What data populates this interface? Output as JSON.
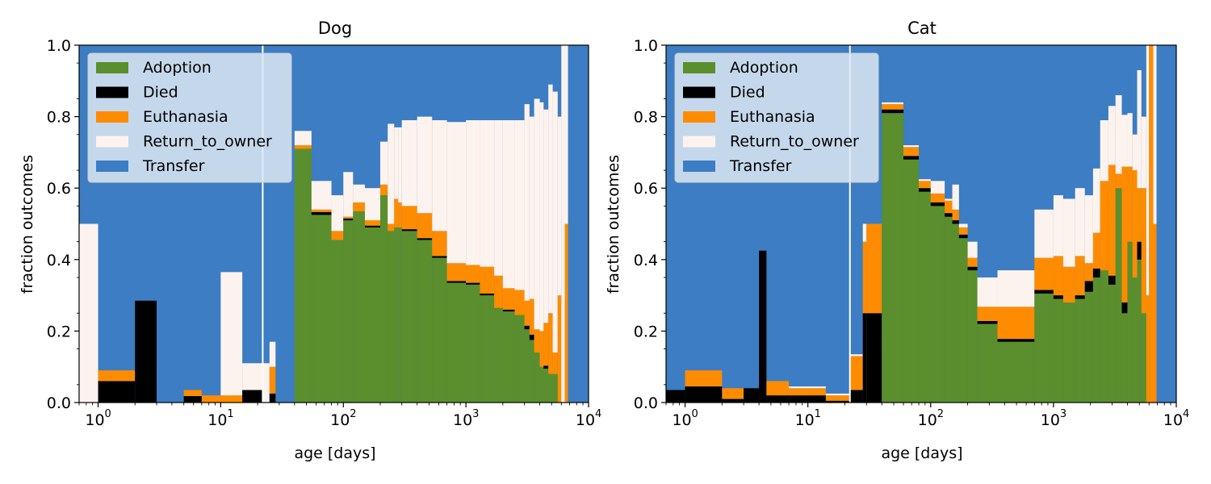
{
  "colors": {
    "Adoption": "#5b8e2c",
    "Died": "#000000",
    "Euthanasia": "#ff8c00",
    "Return_to_owner": "#fdf3ee",
    "Transfer": "#3c7dc3",
    "legend_bg": "#dde8f2",
    "marker_line": "#ffffff"
  },
  "chart_data": [
    {
      "type": "area",
      "title": "Dog",
      "xlabel": "age [days]",
      "ylabel": "fraction outcomes",
      "xscale": "log",
      "xlim": [
        0.7,
        10000
      ],
      "ylim": [
        0.0,
        1.0
      ],
      "x_ticks": [
        {
          "base": "10",
          "exp": "0"
        },
        {
          "base": "10",
          "exp": "1"
        },
        {
          "base": "10",
          "exp": "2"
        },
        {
          "base": "10",
          "exp": "3"
        },
        {
          "base": "10",
          "exp": "4"
        }
      ],
      "y_ticks": [
        "0.0",
        "0.2",
        "0.4",
        "0.6",
        "0.8",
        "1.0"
      ],
      "legend": {
        "position": "upper left",
        "entries": [
          "Adoption",
          "Died",
          "Euthanasia",
          "Return_to_owner",
          "Transfer"
        ]
      },
      "marker_x": 22,
      "series": [
        "Adoption",
        "Died",
        "Euthanasia",
        "Return_to_owner",
        "Transfer"
      ],
      "bins": [
        {
          "x0": 0.7,
          "x1": 1,
          "v": [
            0,
            0,
            0,
            0.5
          ]
        },
        {
          "x0": 1,
          "x1": 2,
          "v": [
            0,
            0.06,
            0.03,
            0
          ]
        },
        {
          "x0": 2,
          "x1": 3,
          "v": [
            0,
            0.285,
            0,
            0
          ]
        },
        {
          "x0": 3,
          "x1": 5,
          "v": [
            0,
            0,
            0,
            0
          ]
        },
        {
          "x0": 5,
          "x1": 7,
          "v": [
            0,
            0.018,
            0.017,
            0
          ]
        },
        {
          "x0": 7,
          "x1": 10,
          "v": [
            0,
            0,
            0.02,
            0
          ]
        },
        {
          "x0": 10,
          "x1": 15,
          "v": [
            0,
            0,
            0.02,
            0.345
          ]
        },
        {
          "x0": 15,
          "x1": 22,
          "v": [
            0,
            0.035,
            0,
            0.075
          ]
        },
        {
          "x0": 22,
          "x1": 25,
          "v": [
            0,
            0,
            0,
            0.11
          ]
        },
        {
          "x0": 25,
          "x1": 28,
          "v": [
            0,
            0.025,
            0.075,
            0.07
          ]
        },
        {
          "x0": 28,
          "x1": 40,
          "v": [
            0,
            0,
            0,
            0
          ]
        },
        {
          "x0": 40,
          "x1": 55,
          "v": [
            0.71,
            0,
            0.01,
            0.04
          ]
        },
        {
          "x0": 55,
          "x1": 80,
          "v": [
            0.525,
            0.008,
            0.007,
            0.08
          ]
        },
        {
          "x0": 80,
          "x1": 100,
          "v": [
            0.455,
            0,
            0.025,
            0.1
          ]
        },
        {
          "x0": 100,
          "x1": 120,
          "v": [
            0.51,
            0.005,
            0.005,
            0.125
          ]
        },
        {
          "x0": 120,
          "x1": 150,
          "v": [
            0.535,
            0,
            0.025,
            0.05
          ]
        },
        {
          "x0": 150,
          "x1": 200,
          "v": [
            0.49,
            0.005,
            0.015,
            0.09
          ]
        },
        {
          "x0": 200,
          "x1": 230,
          "v": [
            0.58,
            0,
            0.03,
            0.12
          ]
        },
        {
          "x0": 230,
          "x1": 260,
          "v": [
            0.48,
            0,
            0.02,
            0.28
          ]
        },
        {
          "x0": 260,
          "x1": 280,
          "v": [
            0.49,
            0,
            0.08,
            0.2
          ]
        },
        {
          "x0": 280,
          "x1": 300,
          "v": [
            0.49,
            0,
            0.07,
            0.21
          ]
        },
        {
          "x0": 300,
          "x1": 400,
          "v": [
            0.48,
            0.005,
            0.065,
            0.24
          ]
        },
        {
          "x0": 400,
          "x1": 530,
          "v": [
            0.455,
            0.005,
            0.07,
            0.27
          ]
        },
        {
          "x0": 530,
          "x1": 700,
          "v": [
            0.405,
            0.005,
            0.07,
            0.31
          ]
        },
        {
          "x0": 700,
          "x1": 1000,
          "v": [
            0.335,
            0.005,
            0.05,
            0.395
          ]
        },
        {
          "x0": 1000,
          "x1": 1300,
          "v": [
            0.33,
            0.005,
            0.05,
            0.405
          ]
        },
        {
          "x0": 1300,
          "x1": 1700,
          "v": [
            0.3,
            0.005,
            0.075,
            0.41
          ]
        },
        {
          "x0": 1700,
          "x1": 2000,
          "v": [
            0.265,
            0,
            0.09,
            0.435
          ]
        },
        {
          "x0": 2000,
          "x1": 2500,
          "v": [
            0.255,
            0.005,
            0.06,
            0.47
          ]
        },
        {
          "x0": 2500,
          "x1": 3000,
          "v": [
            0.245,
            0,
            0.07,
            0.475
          ]
        },
        {
          "x0": 3000,
          "x1": 3300,
          "v": [
            0.205,
            0.01,
            0.07,
            0.55
          ]
        },
        {
          "x0": 3300,
          "x1": 3600,
          "v": [
            0.175,
            0.015,
            0.1,
            0.51
          ]
        },
        {
          "x0": 3600,
          "x1": 4000,
          "v": [
            0.14,
            0,
            0.065,
            0.645
          ]
        },
        {
          "x0": 4000,
          "x1": 4300,
          "v": [
            0.1,
            0,
            0.1,
            0.64
          ]
        },
        {
          "x0": 4300,
          "x1": 4700,
          "v": [
            0.095,
            0.008,
            0.12,
            0.597
          ]
        },
        {
          "x0": 4700,
          "x1": 5100,
          "v": [
            0.08,
            0,
            0.17,
            0.64
          ]
        },
        {
          "x0": 5100,
          "x1": 5600,
          "v": [
            0.08,
            0,
            0.06,
            0.73
          ]
        },
        {
          "x0": 5600,
          "x1": 6000,
          "v": [
            0,
            0,
            0.3,
            0.5
          ]
        },
        {
          "x0": 6000,
          "x1": 6400,
          "v": [
            0,
            0,
            0,
            1.0
          ]
        },
        {
          "x0": 6400,
          "x1": 6800,
          "v": [
            0,
            0,
            0.5,
            0.5
          ]
        }
      ]
    },
    {
      "type": "area",
      "title": "Cat",
      "xlabel": "age [days]",
      "ylabel": "fraction outcomes",
      "xscale": "log",
      "xlim": [
        0.7,
        10000
      ],
      "ylim": [
        0.0,
        1.0
      ],
      "x_ticks": [
        {
          "base": "10",
          "exp": "0"
        },
        {
          "base": "10",
          "exp": "1"
        },
        {
          "base": "10",
          "exp": "2"
        },
        {
          "base": "10",
          "exp": "3"
        },
        {
          "base": "10",
          "exp": "4"
        }
      ],
      "y_ticks": [
        "0.0",
        "0.2",
        "0.4",
        "0.6",
        "0.8",
        "1.0"
      ],
      "legend": {
        "position": "upper left",
        "entries": [
          "Adoption",
          "Died",
          "Euthanasia",
          "Return_to_owner",
          "Transfer"
        ]
      },
      "marker_x": 22,
      "series": [
        "Adoption",
        "Died",
        "Euthanasia",
        "Return_to_owner",
        "Transfer"
      ],
      "bins": [
        {
          "x0": 0.7,
          "x1": 1,
          "v": [
            0,
            0.035,
            0,
            0
          ]
        },
        {
          "x0": 1,
          "x1": 2,
          "v": [
            0,
            0.045,
            0.045,
            0
          ]
        },
        {
          "x0": 2,
          "x1": 3,
          "v": [
            0,
            0.01,
            0.03,
            0
          ]
        },
        {
          "x0": 3,
          "x1": 4,
          "v": [
            0,
            0.04,
            0,
            0
          ]
        },
        {
          "x0": 4,
          "x1": 4.6,
          "v": [
            0,
            0.425,
            0,
            0
          ]
        },
        {
          "x0": 4.6,
          "x1": 7,
          "v": [
            0,
            0.02,
            0.04,
            0
          ]
        },
        {
          "x0": 7,
          "x1": 14,
          "v": [
            0,
            0.02,
            0.02,
            0.005
          ]
        },
        {
          "x0": 14,
          "x1": 22,
          "v": [
            0,
            0.005,
            0.015,
            0.005
          ]
        },
        {
          "x0": 22,
          "x1": 28,
          "v": [
            0,
            0.035,
            0.095,
            0.005
          ]
        },
        {
          "x0": 28,
          "x1": 30,
          "v": [
            0,
            0.25,
            0.2,
            0.05
          ]
        },
        {
          "x0": 30,
          "x1": 40,
          "v": [
            0,
            0.25,
            0.25,
            0
          ]
        },
        {
          "x0": 40,
          "x1": 60,
          "v": [
            0.81,
            0.01,
            0.015,
            0.005
          ]
        },
        {
          "x0": 60,
          "x1": 80,
          "v": [
            0.68,
            0.01,
            0.025,
            0.005
          ]
        },
        {
          "x0": 80,
          "x1": 100,
          "v": [
            0.59,
            0.01,
            0.02,
            0.005
          ]
        },
        {
          "x0": 100,
          "x1": 130,
          "v": [
            0.55,
            0.01,
            0.025,
            0.035
          ]
        },
        {
          "x0": 130,
          "x1": 150,
          "v": [
            0.52,
            0.01,
            0.035,
            0.005
          ]
        },
        {
          "x0": 150,
          "x1": 170,
          "v": [
            0.5,
            0.01,
            0.03,
            0.07
          ]
        },
        {
          "x0": 170,
          "x1": 200,
          "v": [
            0.46,
            0.01,
            0.02,
            0.01
          ]
        },
        {
          "x0": 200,
          "x1": 240,
          "v": [
            0.37,
            0.01,
            0.025,
            0.045
          ]
        },
        {
          "x0": 240,
          "x1": 350,
          "v": [
            0.22,
            0.008,
            0.04,
            0.082
          ]
        },
        {
          "x0": 350,
          "x1": 700,
          "v": [
            0.17,
            0.008,
            0.09,
            0.102
          ]
        },
        {
          "x0": 700,
          "x1": 1000,
          "v": [
            0.305,
            0.01,
            0.09,
            0.135
          ]
        },
        {
          "x0": 1000,
          "x1": 1200,
          "v": [
            0.29,
            0.01,
            0.11,
            0.17
          ]
        },
        {
          "x0": 1200,
          "x1": 1500,
          "v": [
            0.28,
            0,
            0.1,
            0.19
          ]
        },
        {
          "x0": 1500,
          "x1": 1800,
          "v": [
            0.29,
            0.01,
            0.11,
            0.19
          ]
        },
        {
          "x0": 1800,
          "x1": 2100,
          "v": [
            0.31,
            0.03,
            0.05,
            0.19
          ]
        },
        {
          "x0": 2100,
          "x1": 2400,
          "v": [
            0.35,
            0.025,
            0.1,
            0.18
          ]
        },
        {
          "x0": 2400,
          "x1": 2800,
          "v": [
            0.37,
            0,
            0.25,
            0.17
          ]
        },
        {
          "x0": 2800,
          "x1": 3200,
          "v": [
            0.33,
            0.025,
            0.31,
            0.165
          ]
        },
        {
          "x0": 3200,
          "x1": 3600,
          "v": [
            0.6,
            0,
            0.04,
            0.22
          ]
        },
        {
          "x0": 3600,
          "x1": 4000,
          "v": [
            0.25,
            0.03,
            0.38,
            0.145
          ]
        },
        {
          "x0": 4000,
          "x1": 4400,
          "v": [
            0.45,
            0,
            0.21,
            0.15
          ]
        },
        {
          "x0": 4400,
          "x1": 4800,
          "v": [
            0.35,
            0,
            0.3,
            0.1
          ]
        },
        {
          "x0": 4800,
          "x1": 5200,
          "v": [
            0.4,
            0.05,
            0.15,
            0.33
          ]
        },
        {
          "x0": 5200,
          "x1": 5700,
          "v": [
            0.25,
            0,
            0.35,
            0.2
          ]
        },
        {
          "x0": 5700,
          "x1": 6000,
          "v": [
            0.0,
            0,
            0.3,
            0.7
          ]
        },
        {
          "x0": 6000,
          "x1": 6500,
          "v": [
            0,
            0,
            1.0,
            0
          ]
        },
        {
          "x0": 6500,
          "x1": 6900,
          "v": [
            0,
            0,
            0.5,
            0.5
          ]
        }
      ]
    }
  ]
}
